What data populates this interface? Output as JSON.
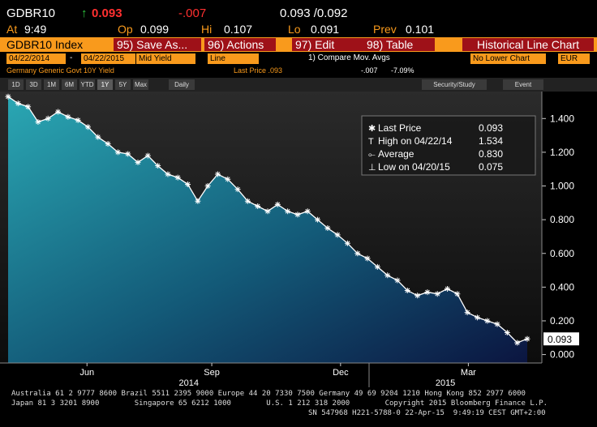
{
  "header": {
    "ticker": "GDBR10",
    "last": "0.093",
    "change": "-.007",
    "bid_ask": "0.093 /0.092",
    "quotes": [
      {
        "label": "At",
        "value": "9:49"
      },
      {
        "label": "Op",
        "value": "0.099"
      },
      {
        "label": "Hi",
        "value": "0.107"
      },
      {
        "label": "Lo",
        "value": "0.091"
      },
      {
        "label": "Prev",
        "value": "0.101"
      }
    ]
  },
  "menu": {
    "security": "GDBR10 Index",
    "tabs": [
      "95) Save As...",
      "96) Actions",
      "97) Edit",
      "98) Table"
    ],
    "function": "Historical Line Chart"
  },
  "settings": {
    "start": "04/22/2014",
    "separator": "-",
    "end": "04/22/2015",
    "field": "Mid Yield",
    "style": "Line",
    "compare": "1) Compare Mov. Avgs",
    "lower": "No Lower Chart",
    "currency": "EUR"
  },
  "info": {
    "name": "Germany Generic Govt 10Y Yield",
    "last": "Last Price .093",
    "change": "-.007",
    "pct": "-7.09%"
  },
  "toolbar": {
    "periods": [
      "1D",
      "3D",
      "1M",
      "6M",
      "YTD",
      "1Y",
      "5Y",
      "Max"
    ],
    "frequency": "Daily",
    "study": "Security/Study",
    "event": "Event"
  },
  "chart_data": {
    "type": "line",
    "legend": [
      {
        "name": "Last Price",
        "value": "0.093"
      },
      {
        "name": "High on 04/22/14",
        "value": "1.534"
      },
      {
        "name": "Average",
        "value": "0.830"
      },
      {
        "name": "Low on 04/20/15",
        "value": "0.075"
      }
    ],
    "series": [
      {
        "name": "Last Price",
        "color": "#ffffff",
        "values": [
          1.53,
          1.49,
          1.47,
          1.38,
          1.4,
          1.44,
          1.41,
          1.39,
          1.35,
          1.29,
          1.25,
          1.2,
          1.19,
          1.14,
          1.18,
          1.12,
          1.07,
          1.05,
          1.01,
          0.91,
          1.0,
          1.07,
          1.04,
          0.98,
          0.91,
          0.88,
          0.85,
          0.89,
          0.85,
          0.83,
          0.85,
          0.8,
          0.75,
          0.71,
          0.66,
          0.6,
          0.57,
          0.52,
          0.47,
          0.44,
          0.38,
          0.35,
          0.37,
          0.36,
          0.39,
          0.36,
          0.25,
          0.22,
          0.2,
          0.18,
          0.13,
          0.07,
          0.093
        ]
      }
    ],
    "xlim": [
      0,
      52
    ],
    "xticks": [
      {
        "value": 7.9,
        "label": "Jun"
      },
      {
        "value": 20.4,
        "label": "Sep"
      },
      {
        "value": 33.3,
        "label": "Dec"
      },
      {
        "value": 46.1,
        "label": "Mar"
      }
    ],
    "years": [
      {
        "value": 18.1,
        "label": "2014"
      },
      {
        "value": 43.8,
        "label": "2015"
      }
    ],
    "ylim": [
      -0.05,
      1.56
    ],
    "yticks": [
      {
        "value": 0,
        "label": "0.000"
      },
      {
        "value": 0.2,
        "label": "0.200"
      },
      {
        "value": 0.4,
        "label": "0.400"
      },
      {
        "value": 0.6,
        "label": "0.600"
      },
      {
        "value": 0.8,
        "label": "0.800"
      },
      {
        "value": 1,
        "label": "1.000"
      },
      {
        "value": 1.2,
        "label": "1.200"
      },
      {
        "value": 1.4,
        "label": "1.400"
      }
    ],
    "price_tag": {
      "value": 0.093,
      "label": "0.093"
    }
  },
  "footer": [
    "Australia 61 2 9777 8600 Brazil 5511 2395 9000 Europe 44 20 7330 7500 Germany 49 69 9204 1210 Hong Kong 852 2977 6000",
    "Japan 81 3 3201 8900        Singapore 65 6212 1000        U.S. 1 212 318 2000        Copyright 2015 Bloomberg Finance L.P.",
    "SN 547968 H221-5788-0 22-Apr-15  9:49:19 CEST GMT+2:00"
  ]
}
